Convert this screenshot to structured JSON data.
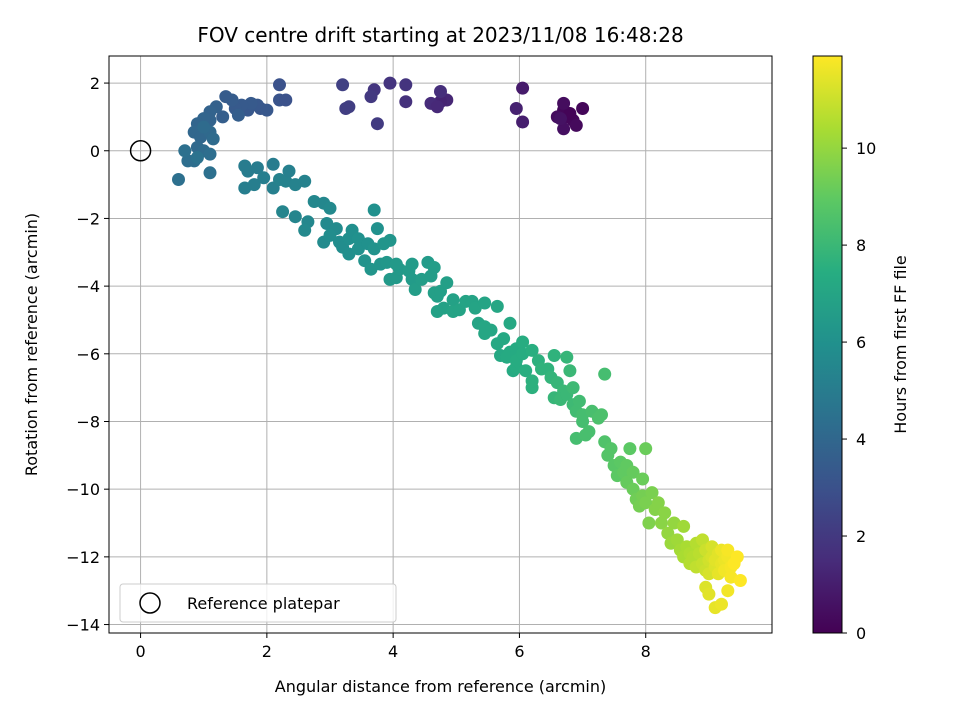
{
  "chart_data": {
    "type": "scatter",
    "title": "FOV centre drift starting at 2023/11/08 16:48:28",
    "xlabel": "Angular distance from reference (arcmin)",
    "ylabel": "Rotation from reference (arcmin)",
    "xlim": [
      -0.5,
      10
    ],
    "ylim": [
      -14.25,
      2.8
    ],
    "x_ticks": [
      0,
      2,
      4,
      6,
      8
    ],
    "y_ticks": [
      2,
      0,
      -2,
      -4,
      -6,
      -8,
      -10,
      -12,
      -14
    ],
    "grid": true,
    "legend": {
      "placement": "lower-left",
      "entries": [
        "Reference platepar"
      ]
    },
    "reference_point": {
      "x": 0,
      "y": 0
    },
    "colorbar": {
      "label": "Hours from first FF file",
      "range": [
        0,
        11.9
      ],
      "ticks": [
        0,
        2,
        4,
        6,
        8,
        10
      ],
      "colormap": "viridis"
    },
    "series": [
      {
        "points": [
          [
            6.7,
            1.2,
            0.2
          ],
          [
            6.75,
            1.0,
            0.3
          ],
          [
            6.85,
            0.9,
            0.2
          ],
          [
            6.6,
            1.0,
            0.4
          ],
          [
            6.9,
            0.75,
            0.3
          ],
          [
            6.7,
            0.65,
            0.5
          ],
          [
            7.0,
            1.25,
            0.2
          ],
          [
            6.8,
            1.1,
            0.1
          ],
          [
            6.7,
            1.4,
            0.4
          ],
          [
            6.65,
            0.95,
            0.6
          ],
          [
            6.05,
            1.85,
            0.9
          ],
          [
            6.05,
            0.85,
            1.0
          ],
          [
            5.95,
            1.25,
            1.1
          ],
          [
            4.85,
            1.5,
            1.3
          ],
          [
            4.75,
            1.45,
            1.2
          ],
          [
            4.6,
            1.4,
            1.5
          ],
          [
            4.7,
            1.3,
            1.4
          ],
          [
            4.75,
            1.75,
            1.6
          ],
          [
            4.2,
            1.45,
            1.7
          ],
          [
            4.2,
            1.95,
            1.8
          ],
          [
            3.95,
            2.0,
            1.8
          ],
          [
            3.7,
            1.8,
            1.9
          ],
          [
            3.65,
            1.6,
            2.0
          ],
          [
            3.75,
            0.8,
            2.1
          ],
          [
            3.3,
            1.3,
            2.2
          ],
          [
            3.25,
            1.25,
            2.2
          ],
          [
            3.2,
            1.95,
            2.3
          ],
          [
            2.2,
            1.95,
            3.0
          ],
          [
            2.2,
            1.5,
            3.1
          ],
          [
            2.3,
            1.5,
            3.0
          ],
          [
            1.9,
            1.25,
            3.2
          ],
          [
            1.85,
            1.35,
            3.3
          ],
          [
            2.0,
            1.2,
            3.3
          ],
          [
            1.7,
            1.2,
            3.3
          ],
          [
            1.75,
            1.4,
            3.4
          ],
          [
            1.6,
            1.35,
            3.4
          ],
          [
            1.5,
            1.25,
            3.4
          ],
          [
            1.45,
            1.5,
            3.5
          ],
          [
            1.35,
            1.6,
            3.5
          ],
          [
            1.55,
            1.05,
            3.6
          ],
          [
            1.3,
            1.0,
            3.6
          ],
          [
            1.2,
            1.3,
            3.7
          ],
          [
            1.1,
            1.15,
            3.8
          ],
          [
            1.1,
            0.9,
            3.8
          ],
          [
            1.0,
            0.95,
            3.9
          ],
          [
            0.9,
            0.8,
            3.9
          ],
          [
            0.85,
            0.55,
            4.0
          ],
          [
            0.95,
            0.4,
            4.0
          ],
          [
            0.9,
            0.1,
            4.1
          ],
          [
            1.1,
            0.55,
            4.1
          ],
          [
            1.0,
            0.7,
            4.2
          ],
          [
            1.15,
            0.35,
            4.2
          ],
          [
            1.0,
            0.0,
            4.2
          ],
          [
            1.1,
            -0.1,
            4.3
          ],
          [
            0.85,
            -0.3,
            4.3
          ],
          [
            0.75,
            -0.3,
            4.3
          ],
          [
            0.7,
            0.0,
            4.4
          ],
          [
            0.6,
            -0.85,
            4.4
          ],
          [
            1.1,
            -0.65,
            4.4
          ],
          [
            0.9,
            -0.2,
            4.5
          ],
          [
            1.65,
            -0.45,
            5.0
          ],
          [
            1.7,
            -0.6,
            5.0
          ],
          [
            1.65,
            -1.1,
            5.1
          ],
          [
            1.8,
            -1.0,
            5.1
          ],
          [
            1.85,
            -0.5,
            5.0
          ],
          [
            1.95,
            -0.8,
            5.1
          ],
          [
            2.1,
            -0.4,
            5.0
          ],
          [
            2.1,
            -1.1,
            5.2
          ],
          [
            2.2,
            -0.85,
            5.3
          ],
          [
            2.3,
            -0.9,
            5.3
          ],
          [
            2.35,
            -0.6,
            5.2
          ],
          [
            2.45,
            -1.0,
            5.3
          ],
          [
            2.25,
            -1.8,
            5.4
          ],
          [
            2.45,
            -1.95,
            5.4
          ],
          [
            2.6,
            -0.9,
            5.3
          ],
          [
            2.75,
            -1.5,
            5.5
          ],
          [
            2.65,
            -2.1,
            5.5
          ],
          [
            2.6,
            -2.35,
            5.6
          ],
          [
            2.9,
            -1.55,
            5.5
          ],
          [
            2.95,
            -2.15,
            5.6
          ],
          [
            3.0,
            -1.7,
            5.6
          ],
          [
            3.1,
            -2.3,
            5.7
          ],
          [
            2.9,
            -2.7,
            5.7
          ],
          [
            3.0,
            -2.5,
            5.8
          ],
          [
            3.15,
            -2.7,
            5.8
          ],
          [
            3.2,
            -2.85,
            5.8
          ],
          [
            3.3,
            -2.6,
            5.9
          ],
          [
            3.3,
            -3.05,
            5.9
          ],
          [
            3.35,
            -2.35,
            5.9
          ],
          [
            3.45,
            -2.6,
            6.0
          ],
          [
            3.45,
            -2.9,
            6.0
          ],
          [
            3.55,
            -3.25,
            6.1
          ],
          [
            3.6,
            -2.75,
            6.0
          ],
          [
            3.7,
            -2.9,
            6.1
          ],
          [
            3.75,
            -2.3,
            6.0
          ],
          [
            3.7,
            -1.75,
            6.0
          ],
          [
            3.65,
            -3.5,
            6.2
          ],
          [
            3.8,
            -3.35,
            6.2
          ],
          [
            3.85,
            -2.75,
            6.2
          ],
          [
            3.9,
            -3.3,
            6.3
          ],
          [
            3.95,
            -2.65,
            6.2
          ],
          [
            3.95,
            -3.8,
            6.4
          ],
          [
            4.05,
            -3.75,
            6.4
          ],
          [
            4.1,
            -3.5,
            6.4
          ],
          [
            4.05,
            -3.35,
            6.4
          ],
          [
            4.25,
            -3.55,
            6.5
          ],
          [
            4.3,
            -3.35,
            6.5
          ],
          [
            4.3,
            -3.8,
            6.5
          ],
          [
            4.35,
            -4.1,
            6.6
          ],
          [
            4.45,
            -3.8,
            6.6
          ],
          [
            4.55,
            -3.3,
            6.5
          ],
          [
            4.6,
            -3.7,
            6.6
          ],
          [
            4.65,
            -4.2,
            6.7
          ],
          [
            4.65,
            -3.45,
            6.6
          ],
          [
            4.7,
            -4.3,
            6.7
          ],
          [
            4.75,
            -4.15,
            6.7
          ],
          [
            4.8,
            -4.65,
            6.8
          ],
          [
            4.7,
            -4.75,
            6.8
          ],
          [
            4.85,
            -3.9,
            6.7
          ],
          [
            4.95,
            -4.4,
            6.8
          ],
          [
            4.95,
            -4.75,
            6.9
          ],
          [
            5.05,
            -4.7,
            6.9
          ],
          [
            5.15,
            -4.45,
            6.9
          ],
          [
            5.25,
            -4.45,
            6.9
          ],
          [
            5.3,
            -4.65,
            7.0
          ],
          [
            5.35,
            -5.1,
            7.0
          ],
          [
            5.45,
            -4.5,
            7.0
          ],
          [
            5.45,
            -5.2,
            7.1
          ],
          [
            5.45,
            -5.4,
            7.1
          ],
          [
            5.55,
            -5.3,
            7.1
          ],
          [
            5.65,
            -4.6,
            7.1
          ],
          [
            5.65,
            -5.7,
            7.2
          ],
          [
            5.7,
            -6.05,
            7.2
          ],
          [
            5.75,
            -5.55,
            7.2
          ],
          [
            5.8,
            -6.1,
            7.3
          ],
          [
            5.85,
            -5.1,
            7.2
          ],
          [
            5.85,
            -5.95,
            7.3
          ],
          [
            5.9,
            -6.5,
            7.3
          ],
          [
            5.95,
            -5.85,
            7.3
          ],
          [
            5.95,
            -6.4,
            7.4
          ],
          [
            5.95,
            -6.2,
            7.4
          ],
          [
            6.05,
            -5.65,
            7.4
          ],
          [
            6.05,
            -6.0,
            7.4
          ],
          [
            6.1,
            -6.5,
            7.5
          ],
          [
            6.2,
            -5.9,
            7.5
          ],
          [
            6.2,
            -7.0,
            7.6
          ],
          [
            6.2,
            -6.8,
            7.6
          ],
          [
            6.3,
            -6.2,
            7.6
          ],
          [
            6.35,
            -6.45,
            7.7
          ],
          [
            6.45,
            -6.45,
            7.7
          ],
          [
            6.5,
            -6.7,
            7.8
          ],
          [
            6.55,
            -6.05,
            7.7
          ],
          [
            6.55,
            -7.3,
            7.9
          ],
          [
            6.6,
            -6.85,
            7.9
          ],
          [
            6.65,
            -7.35,
            8.0
          ],
          [
            6.7,
            -7.1,
            8.0
          ],
          [
            6.75,
            -7.2,
            8.0
          ],
          [
            6.75,
            -6.1,
            7.9
          ],
          [
            6.8,
            -6.5,
            8.0
          ],
          [
            6.85,
            -7.0,
            8.1
          ],
          [
            6.85,
            -7.5,
            8.1
          ],
          [
            6.9,
            -7.7,
            8.2
          ],
          [
            6.9,
            -8.5,
            8.3
          ],
          [
            6.95,
            -7.4,
            8.2
          ],
          [
            7.0,
            -8.0,
            8.3
          ],
          [
            7.0,
            -7.8,
            8.3
          ],
          [
            7.05,
            -8.4,
            8.4
          ],
          [
            7.1,
            -8.3,
            8.4
          ],
          [
            7.15,
            -7.7,
            8.4
          ],
          [
            7.25,
            -7.9,
            8.5
          ],
          [
            7.3,
            -7.8,
            8.5
          ],
          [
            7.35,
            -6.6,
            8.3
          ],
          [
            7.35,
            -8.6,
            8.6
          ],
          [
            7.4,
            -9.0,
            8.7
          ],
          [
            7.45,
            -8.8,
            8.7
          ],
          [
            7.5,
            -9.3,
            8.8
          ],
          [
            7.55,
            -9.6,
            8.9
          ],
          [
            7.6,
            -9.2,
            8.9
          ],
          [
            7.65,
            -9.5,
            9.0
          ],
          [
            7.7,
            -9.3,
            9.0
          ],
          [
            7.7,
            -9.8,
            9.1
          ],
          [
            7.75,
            -8.8,
            8.9
          ],
          [
            7.8,
            -10.0,
            9.2
          ],
          [
            7.8,
            -9.5,
            9.1
          ],
          [
            7.85,
            -10.3,
            9.3
          ],
          [
            7.9,
            -10.5,
            9.4
          ],
          [
            7.95,
            -9.7,
            9.2
          ],
          [
            7.95,
            -10.2,
            9.4
          ],
          [
            8.0,
            -8.8,
            9.2
          ],
          [
            8.0,
            -10.4,
            9.5
          ],
          [
            8.05,
            -11.0,
            9.6
          ],
          [
            8.1,
            -10.1,
            9.5
          ],
          [
            8.15,
            -10.6,
            9.7
          ],
          [
            8.2,
            -10.4,
            9.7
          ],
          [
            8.25,
            -11.0,
            9.8
          ],
          [
            8.3,
            -10.7,
            9.8
          ],
          [
            8.35,
            -11.3,
            10.0
          ],
          [
            8.4,
            -11.6,
            10.1
          ],
          [
            8.45,
            -11.0,
            10.0
          ],
          [
            8.5,
            -11.5,
            10.2
          ],
          [
            8.55,
            -11.8,
            10.3
          ],
          [
            8.6,
            -11.1,
            10.2
          ],
          [
            8.6,
            -12.0,
            10.4
          ],
          [
            8.65,
            -11.7,
            10.4
          ],
          [
            8.7,
            -11.9,
            10.5
          ],
          [
            8.7,
            -12.2,
            10.6
          ],
          [
            8.75,
            -12.0,
            10.6
          ],
          [
            8.8,
            -11.6,
            10.6
          ],
          [
            8.8,
            -12.3,
            10.8
          ],
          [
            8.85,
            -11.9,
            10.7
          ],
          [
            8.9,
            -12.2,
            10.9
          ],
          [
            8.9,
            -11.5,
            10.8
          ],
          [
            8.95,
            -12.4,
            11.0
          ],
          [
            8.95,
            -11.8,
            11.0
          ],
          [
            9.0,
            -12.1,
            11.1
          ],
          [
            9.0,
            -12.5,
            11.2
          ],
          [
            9.05,
            -12.0,
            11.2
          ],
          [
            9.05,
            -11.7,
            11.2
          ],
          [
            9.1,
            -12.3,
            11.3
          ],
          [
            9.1,
            -12.1,
            11.4
          ],
          [
            9.15,
            -11.9,
            11.4
          ],
          [
            9.15,
            -12.5,
            11.5
          ],
          [
            9.2,
            -12.2,
            11.5
          ],
          [
            9.2,
            -11.8,
            11.6
          ],
          [
            9.25,
            -12.1,
            11.6
          ],
          [
            9.25,
            -12.4,
            11.7
          ],
          [
            9.3,
            -12.0,
            11.7
          ],
          [
            9.3,
            -11.8,
            11.8
          ],
          [
            9.35,
            -12.3,
            11.8
          ],
          [
            9.35,
            -12.6,
            11.8
          ],
          [
            9.4,
            -12.2,
            11.9
          ],
          [
            9.45,
            -12.0,
            11.9
          ],
          [
            9.1,
            -13.5,
            11.5
          ],
          [
            9.2,
            -13.4,
            11.6
          ],
          [
            9.3,
            -13.0,
            11.7
          ],
          [
            9.5,
            -12.7,
            11.9
          ],
          [
            8.95,
            -12.9,
            11.3
          ],
          [
            9.0,
            -13.1,
            11.4
          ]
        ]
      }
    ]
  }
}
